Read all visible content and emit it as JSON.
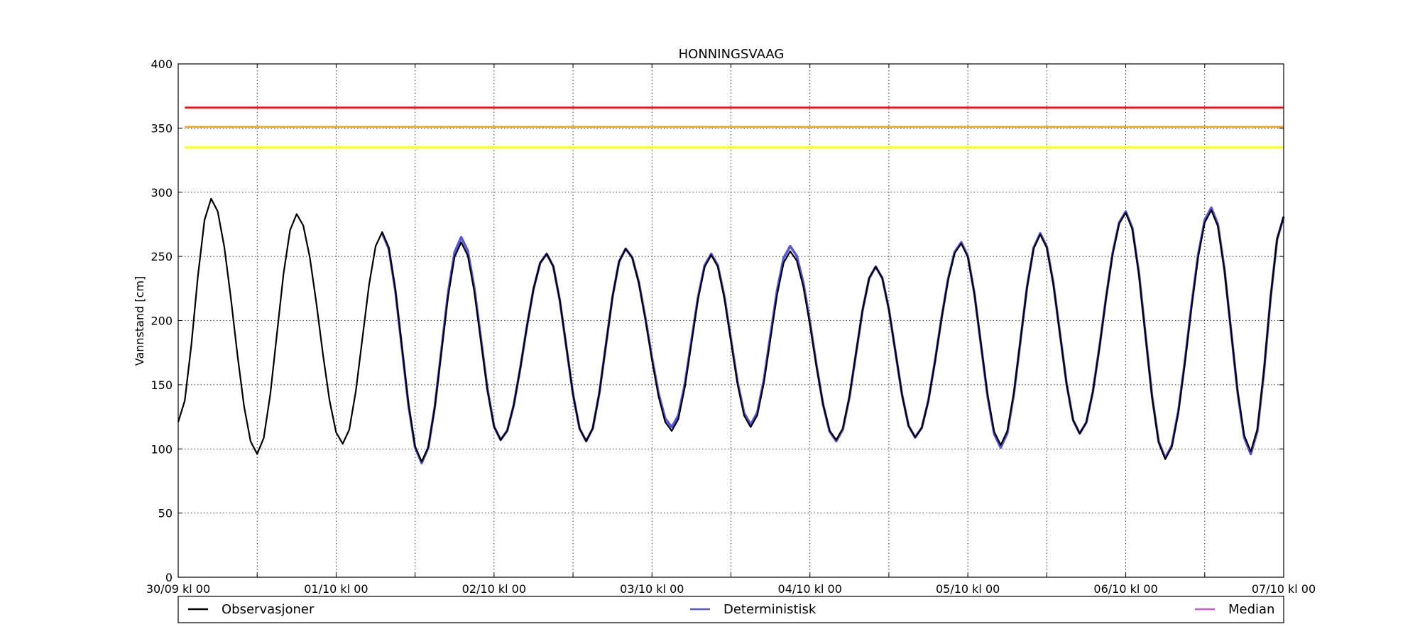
{
  "chart_data": {
    "type": "line",
    "title": "HONNINGSVAAG",
    "ylabel": "Vannstand [cm]",
    "xlabel": "",
    "ylim": [
      0,
      400
    ],
    "yticks": [
      0,
      50,
      100,
      150,
      200,
      250,
      300,
      350,
      400
    ],
    "xlim_hours": [
      0,
      168
    ],
    "xticks_hours": [
      0,
      12,
      24,
      36,
      48,
      60,
      72,
      84,
      96,
      108,
      120,
      132,
      144,
      156,
      168
    ],
    "x_tick_labels": [
      {
        "hour": 0,
        "label": "30/09 kl 00"
      },
      {
        "hour": 24,
        "label": "01/10 kl 00"
      },
      {
        "hour": 48,
        "label": "02/10 kl 00"
      },
      {
        "hour": 72,
        "label": "03/10 kl 00"
      },
      {
        "hour": 96,
        "label": "04/10 kl 00"
      },
      {
        "hour": 120,
        "label": "05/10 kl 00"
      },
      {
        "hour": 144,
        "label": "06/10 kl 00"
      },
      {
        "hour": 168,
        "label": "07/10 kl 00"
      }
    ],
    "grid": true,
    "legend_position": "bottom",
    "thresholds": [
      {
        "value": 366,
        "color": "#ff0000"
      },
      {
        "value": 351,
        "color": "#ffa500"
      },
      {
        "value": 335,
        "color": "#ffff00"
      }
    ],
    "observasjoner_peaks": [
      {
        "hour": 0,
        "value": 121
      },
      {
        "hour": 5,
        "value": 295
      },
      {
        "hour": 12,
        "value": 96
      },
      {
        "hour": 18,
        "value": 283
      },
      {
        "hour": 25,
        "value": 104
      },
      {
        "hour": 31,
        "value": 269
      },
      {
        "hour": 37,
        "value": 90
      },
      {
        "hour": 43,
        "value": 261
      },
      {
        "hour": 49,
        "value": 107
      },
      {
        "hour": 56,
        "value": 252
      },
      {
        "hour": 62,
        "value": 106
      },
      {
        "hour": 68,
        "value": 256
      },
      {
        "hour": 75,
        "value": 114
      },
      {
        "hour": 81,
        "value": 251
      },
      {
        "hour": 87,
        "value": 117
      },
      {
        "hour": 93,
        "value": 254
      },
      {
        "hour": 100,
        "value": 107
      },
      {
        "hour": 106,
        "value": 242
      },
      {
        "hour": 112,
        "value": 109
      },
      {
        "hour": 119,
        "value": 260
      },
      {
        "hour": 125,
        "value": 103
      },
      {
        "hour": 131,
        "value": 267
      },
      {
        "hour": 137,
        "value": 112
      },
      {
        "hour": 144,
        "value": 284
      },
      {
        "hour": 150,
        "value": 92
      },
      {
        "hour": 157,
        "value": 286
      },
      {
        "hour": 163,
        "value": 98
      },
      {
        "hour": 168,
        "value": 281
      }
    ],
    "deterministisk_peaks": [
      {
        "hour": 31,
        "value": 268
      },
      {
        "hour": 37,
        "value": 89
      },
      {
        "hour": 43,
        "value": 265
      },
      {
        "hour": 49,
        "value": 107
      },
      {
        "hour": 56,
        "value": 252
      },
      {
        "hour": 62,
        "value": 106
      },
      {
        "hour": 68,
        "value": 256
      },
      {
        "hour": 75,
        "value": 117
      },
      {
        "hour": 81,
        "value": 252
      },
      {
        "hour": 87,
        "value": 119
      },
      {
        "hour": 93,
        "value": 258
      },
      {
        "hour": 100,
        "value": 106
      },
      {
        "hour": 106,
        "value": 242
      },
      {
        "hour": 112,
        "value": 109
      },
      {
        "hour": 119,
        "value": 261
      },
      {
        "hour": 125,
        "value": 101
      },
      {
        "hour": 131,
        "value": 268
      },
      {
        "hour": 137,
        "value": 112
      },
      {
        "hour": 144,
        "value": 285
      },
      {
        "hour": 150,
        "value": 93
      },
      {
        "hour": 157,
        "value": 288
      },
      {
        "hour": 163,
        "value": 96
      },
      {
        "hour": 168,
        "value": 281
      }
    ],
    "deterministisk_start_hour": 30,
    "series": [
      {
        "name": "Observasjoner",
        "color": "#000000"
      },
      {
        "name": "Deterministisk",
        "color": "#5555dd"
      },
      {
        "name": "Median",
        "color": "#cc55dd"
      }
    ]
  }
}
